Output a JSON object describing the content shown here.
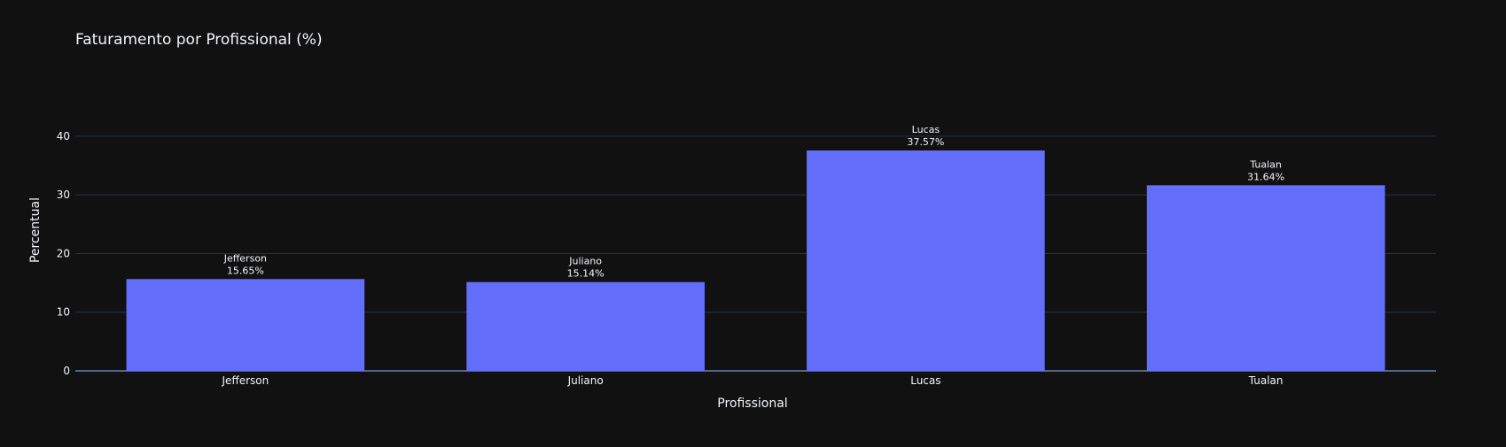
{
  "chart_data": {
    "type": "bar",
    "title": "Faturamento por Profissional (%)",
    "xlabel": "Profissional",
    "ylabel": "Percentual",
    "categories": [
      "Jefferson",
      "Juliano",
      "Lucas",
      "Tualan"
    ],
    "values": [
      15.65,
      15.14,
      37.57,
      31.64
    ],
    "value_labels": [
      "15.65%",
      "15.14%",
      "37.57%",
      "31.64%"
    ],
    "ylim": [
      0,
      43
    ],
    "yticks": [
      0,
      10,
      20,
      30,
      40
    ],
    "grid": true,
    "bar_color": "#636efa",
    "background_color": "#111111"
  }
}
